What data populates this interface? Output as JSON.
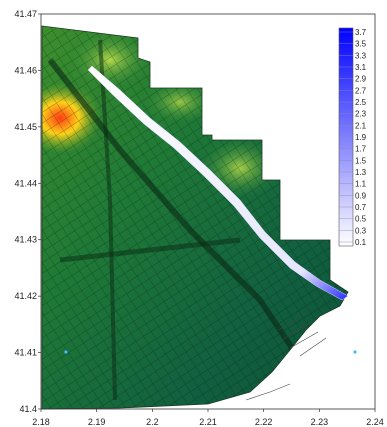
{
  "map": {
    "x_ticks": [
      "2.18",
      "2.19",
      "2.2",
      "2.21",
      "2.22",
      "2.23",
      "2.24"
    ],
    "y_ticks": [
      "41.47",
      "41.46",
      "41.45",
      "41.44",
      "41.43",
      "41.42",
      "41.41",
      "41.4"
    ],
    "x_range": [
      2.18,
      2.24
    ],
    "y_range": [
      41.4,
      41.47
    ],
    "colors": {
      "frame": "#333333",
      "land_low": "#0e5a2e",
      "land_mid": "#2f8f3a",
      "land_high": "#9acd32",
      "peak": "#ff3a12",
      "street_lines": "#0a1a0c",
      "sea": "#ffffff",
      "flood_low": "#ffffff",
      "flood_high": "#0000ff"
    }
  },
  "legend": {
    "labels": [
      "3.7",
      "3.5",
      "3.3",
      "3.1",
      "2.9",
      "2.7",
      "2.5",
      "2.3",
      "2.1",
      "1.9",
      "1.7",
      "1.5",
      "1.3",
      "1.1",
      "0.9",
      "0.7",
      "0.5",
      "0.3",
      "0.1"
    ],
    "gradient": [
      "#0000ff",
      "#1a1aff",
      "#3333ff",
      "#4d4dff",
      "#6666ff",
      "#8080ff",
      "#9999ff",
      "#b3b3ff",
      "#ccccff",
      "#e6e6ff",
      "#ffffff"
    ]
  }
}
